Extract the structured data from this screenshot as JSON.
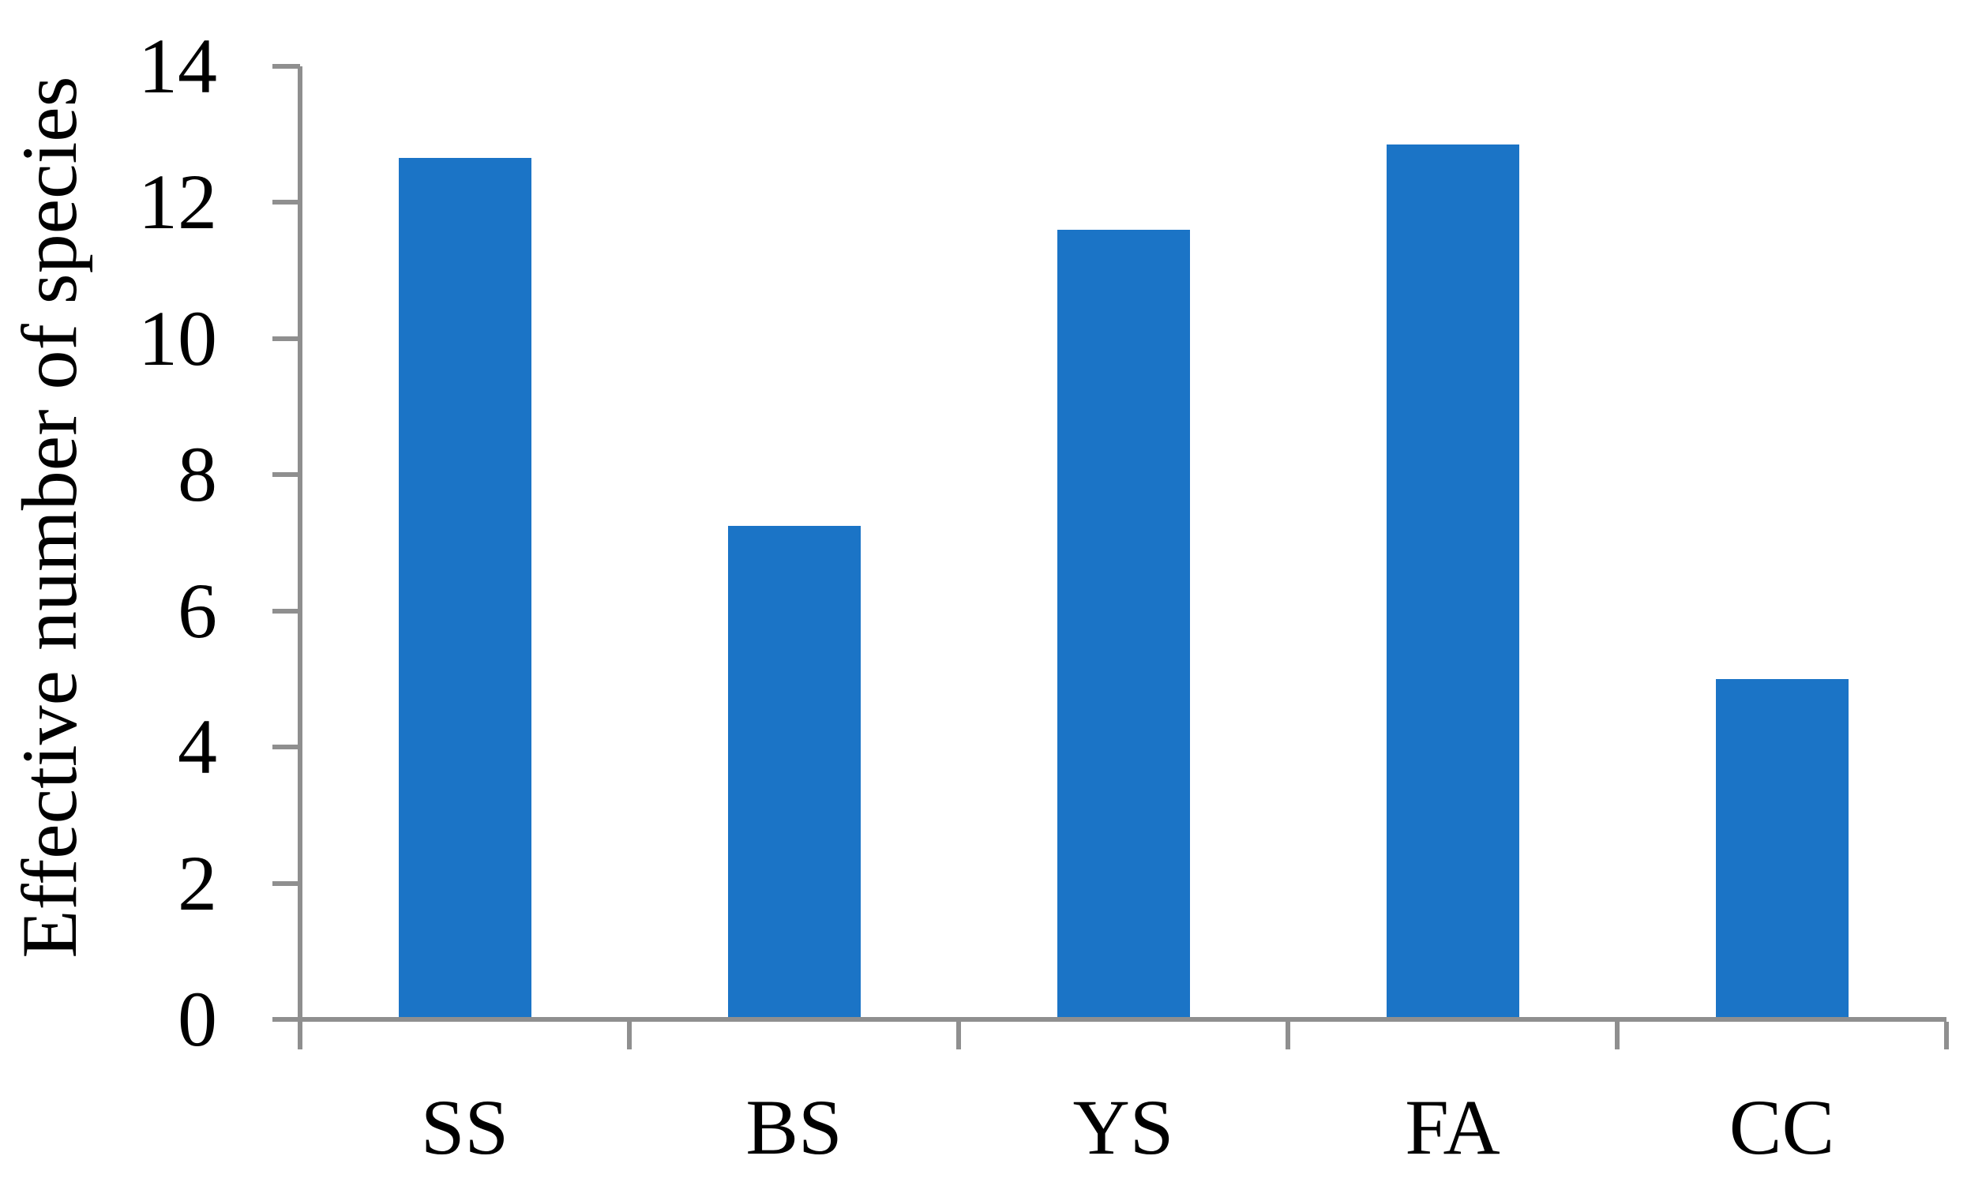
{
  "chart_data": {
    "type": "bar",
    "title": "",
    "xlabel": "",
    "ylabel": "Effective number of species",
    "categories": [
      "SS",
      "BS",
      "YS",
      "FA",
      "CC"
    ],
    "values": [
      12.65,
      7.25,
      11.6,
      12.85,
      5.0
    ],
    "y_ticks": [
      0,
      2,
      4,
      6,
      8,
      10,
      12,
      14
    ],
    "ylim": [
      0,
      14
    ],
    "legend": null,
    "grid": false,
    "bar_color": "#1B74C6",
    "axis_color": "#8F8F8F",
    "text_color": "#000000",
    "background_color": "#FFFFFF"
  }
}
